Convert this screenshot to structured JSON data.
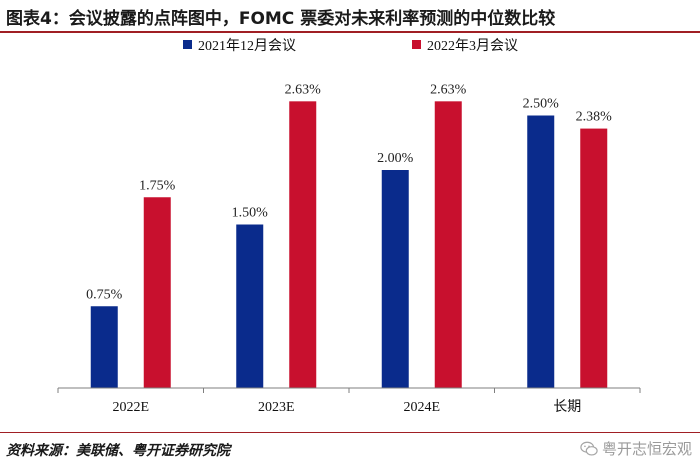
{
  "header": {
    "title": "图表4：会议披露的点阵图中，FOMC 票委对未来利率预测的中位数比较"
  },
  "footer": {
    "source": "资料来源：美联储、粤开证券研究院",
    "watermark": "粤开志恒宏观",
    "watermark_icon": "wechat-icon"
  },
  "chart_data": {
    "type": "bar",
    "title": "",
    "xlabel": "",
    "ylabel": "",
    "ylim": [
      0,
      3.0
    ],
    "grid": false,
    "legend_position": "top-left",
    "categories": [
      "2022E",
      "2023E",
      "2024E",
      "长期"
    ],
    "series": [
      {
        "name": "2021年12月会议",
        "color": "#0a2b8c",
        "values": [
          0.75,
          1.5,
          2.0,
          2.5
        ],
        "labels": [
          "0.75%",
          "1.50%",
          "2.00%",
          "2.50%"
        ]
      },
      {
        "name": "2022年3月会议",
        "color": "#c8102e",
        "values": [
          1.75,
          2.63,
          2.63,
          2.38
        ],
        "labels": [
          "1.75%",
          "2.63%",
          "2.63%",
          "2.38%"
        ]
      }
    ]
  }
}
